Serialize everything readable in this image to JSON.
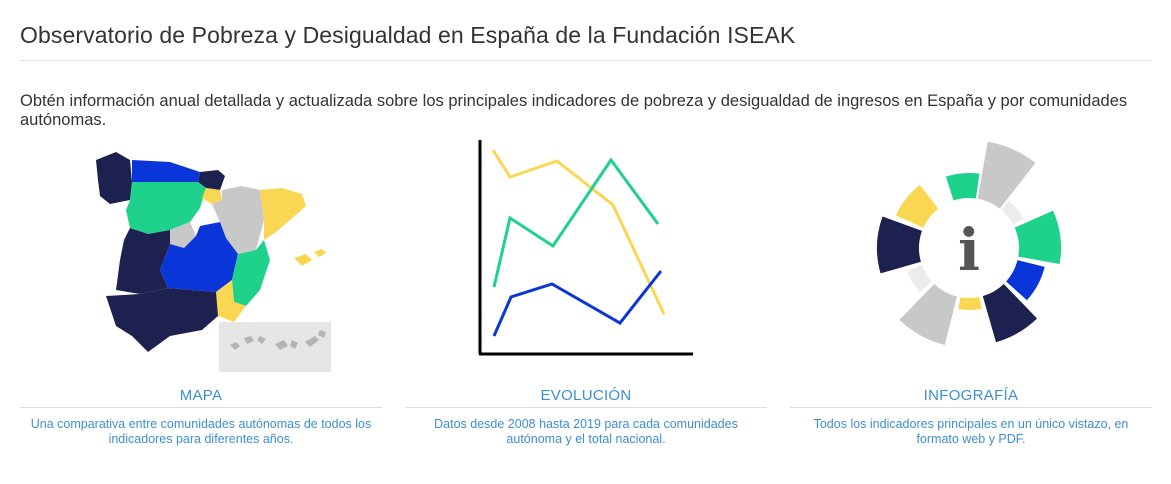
{
  "header": {
    "title": "Observatorio de Pobreza y Desigualdad en España de la Fundación ISEAK",
    "intro": "Obtén información anual detallada y actualizada sobre los principales indicadores de pobreza y desigualdad de ingresos en España y por comunidades autónomas."
  },
  "cards": [
    {
      "label": "MAPA",
      "description": "Una comparativa entre comunidades autónomas de todos los indicadores para diferentes años.",
      "icon": "spain-map-icon"
    },
    {
      "label": "EVOLUCIÓN",
      "description": "Datos desde 2008 hasta 2019 para cada comunidades autónoma y el total nacional.",
      "icon": "line-chart-icon"
    },
    {
      "label": "INFOGRAFÍA",
      "description": "Todos los indicadores principales en un único vistazo, en formato web y PDF.",
      "icon": "infographic-icon",
      "center_glyph": "i"
    }
  ],
  "colors": {
    "navy": "#1d2150",
    "blue": "#0a35d8",
    "green": "#1ed28b",
    "yellow": "#fad752",
    "gray": "#c8c8c8",
    "light_gray": "#ececec",
    "link": "#3d8fcf"
  }
}
